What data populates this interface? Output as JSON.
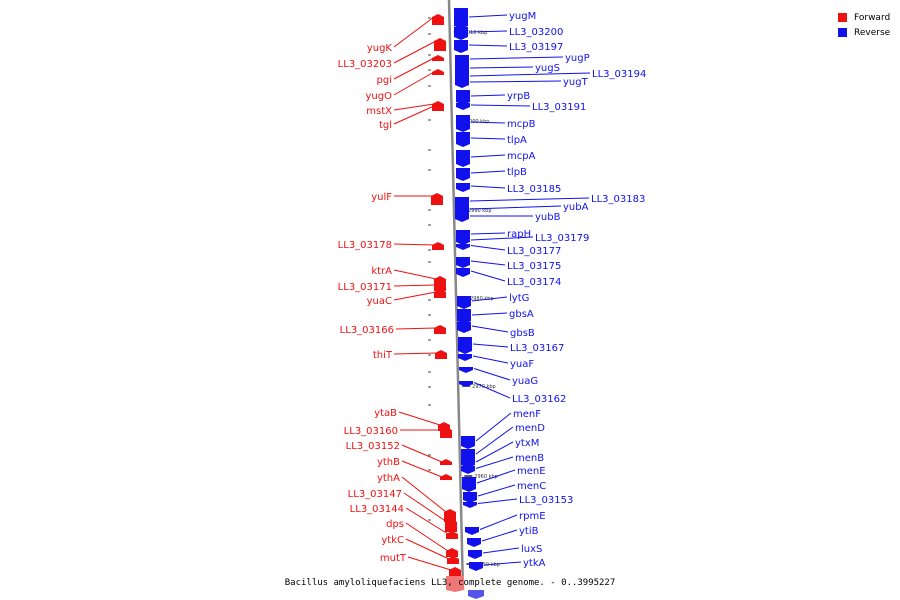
{
  "caption": "Bacillus amyloliquefaciens LL3, complete genome. - 0..3995227",
  "legend": [
    {
      "label": "Forward",
      "color": "#ee1111"
    },
    {
      "label": "Reverse",
      "color": "#1111ee"
    }
  ],
  "colors": {
    "forward": "#ee1111",
    "reverse": "#1111ee",
    "axis": "#888888"
  },
  "ticks": [
    "3010 kbp",
    "3000 kbp",
    "2990 kbp",
    "2980 kbp",
    "2970 kbp",
    "2960 kbp",
    "2950 kbp"
  ],
  "forward_genes": [
    "yugK",
    "LL3_03203",
    "pgi",
    "yugO",
    "mstX",
    "tgl",
    "yulF",
    "LL3_03178",
    "ktrA",
    "LL3_03171",
    "yuaC",
    "LL3_03166",
    "thiT",
    "ytaB",
    "LL3_03160",
    "LL3_03152",
    "ythB",
    "ythA",
    "LL3_03147",
    "LL3_03144",
    "dps",
    "ytkC",
    "mutT"
  ],
  "reverse_genes": [
    "yugM",
    "LL3_03200",
    "LL3_03197",
    "yugP",
    "yugS",
    "LL3_03194",
    "yugT",
    "yrpB",
    "LL3_03191",
    "mcpB",
    "tlpA",
    "mcpA",
    "tlpB",
    "LL3_03185",
    "LL3_03183",
    "yubA",
    "yubB",
    "rapH",
    "LL3_03179",
    "LL3_03177",
    "LL3_03175",
    "LL3_03174",
    "lytG",
    "gbsA",
    "gbsB",
    "LL3_03167",
    "yuaF",
    "yuaG",
    "LL3_03162",
    "menF",
    "menD",
    "ytxM",
    "menB",
    "menE",
    "menC",
    "LL3_03153",
    "rpmE",
    "ytiB",
    "luxS",
    "ytkA"
  ]
}
